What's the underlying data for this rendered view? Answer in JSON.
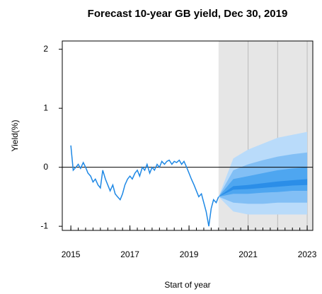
{
  "chart_data": {
    "type": "fan",
    "title": "Forecast 10-year GB yield, Dec 30, 2019",
    "x_label": "Start of year",
    "y_label": "Yield(%)",
    "xlim": [
      2014.71,
      2023.19
    ],
    "ylim": [
      -1.07,
      2.14
    ],
    "xticks": [
      2015,
      2017,
      2019,
      2021,
      2023
    ],
    "yticks": [
      -1,
      0,
      1,
      2
    ],
    "forecast_start": 2020,
    "shade_color": "#e6e6e6",
    "line": {
      "color": "#1e88e5",
      "x": [
        2015,
        2015.08,
        2015.17,
        2015.25,
        2015.33,
        2015.42,
        2015.5,
        2015.58,
        2015.67,
        2015.75,
        2015.83,
        2015.92,
        2016,
        2016.08,
        2016.17,
        2016.25,
        2016.33,
        2016.42,
        2016.5,
        2016.58,
        2016.67,
        2016.75,
        2016.83,
        2016.92,
        2017,
        2017.08,
        2017.17,
        2017.25,
        2017.33,
        2017.42,
        2017.5,
        2017.58,
        2017.67,
        2017.75,
        2017.83,
        2017.92,
        2018,
        2018.08,
        2018.17,
        2018.25,
        2018.33,
        2018.42,
        2018.5,
        2018.58,
        2018.67,
        2018.75,
        2018.83,
        2018.92,
        2019,
        2019.08,
        2019.17,
        2019.25,
        2019.33,
        2019.42,
        2019.5,
        2019.58,
        2019.67,
        2019.75,
        2019.83,
        2019.92,
        2020
      ],
      "values": [
        0.37,
        -0.05,
        0.0,
        0.05,
        -0.02,
        0.08,
        0.0,
        -0.1,
        -0.15,
        -0.25,
        -0.2,
        -0.3,
        -0.35,
        -0.05,
        -0.2,
        -0.3,
        -0.4,
        -0.3,
        -0.45,
        -0.5,
        -0.55,
        -0.45,
        -0.3,
        -0.2,
        -0.15,
        -0.2,
        -0.1,
        -0.05,
        -0.15,
        0.0,
        -0.05,
        0.05,
        -0.1,
        0.0,
        -0.05,
        0.05,
        0.0,
        0.1,
        0.05,
        0.1,
        0.12,
        0.05,
        0.1,
        0.08,
        0.12,
        0.05,
        0.1,
        0.0,
        -0.1,
        -0.2,
        -0.3,
        -0.4,
        -0.5,
        -0.45,
        -0.6,
        -0.75,
        -1.0,
        -0.7,
        -0.55,
        -0.6,
        -0.5
      ]
    },
    "fan": {
      "x": [
        2020,
        2020.5,
        2021,
        2021.5,
        2022,
        2022.5,
        2023
      ],
      "bands": [
        {
          "color": "#b9dbfa",
          "upper": [
            -0.5,
            0.15,
            0.3,
            0.4,
            0.5,
            0.55,
            0.6
          ],
          "lower": [
            -0.5,
            -0.75,
            -0.8,
            -0.8,
            -0.8,
            -0.8,
            -0.8
          ]
        },
        {
          "color": "#82bff5",
          "upper": [
            -0.5,
            -0.05,
            0.05,
            0.12,
            0.18,
            0.22,
            0.25
          ],
          "lower": [
            -0.5,
            -0.6,
            -0.62,
            -0.62,
            -0.6,
            -0.6,
            -0.6
          ]
        },
        {
          "color": "#4ea6f0",
          "upper": [
            -0.5,
            -0.2,
            -0.15,
            -0.1,
            -0.05,
            -0.02,
            0.0
          ],
          "lower": [
            -0.5,
            -0.45,
            -0.45,
            -0.43,
            -0.42,
            -0.4,
            -0.4
          ]
        },
        {
          "color": "#2b8ee8",
          "upper": [
            -0.5,
            -0.32,
            -0.3,
            -0.27,
            -0.24,
            -0.22,
            -0.2
          ],
          "lower": [
            -0.5,
            -0.38,
            -0.37,
            -0.35,
            -0.33,
            -0.31,
            -0.3
          ]
        }
      ]
    }
  }
}
